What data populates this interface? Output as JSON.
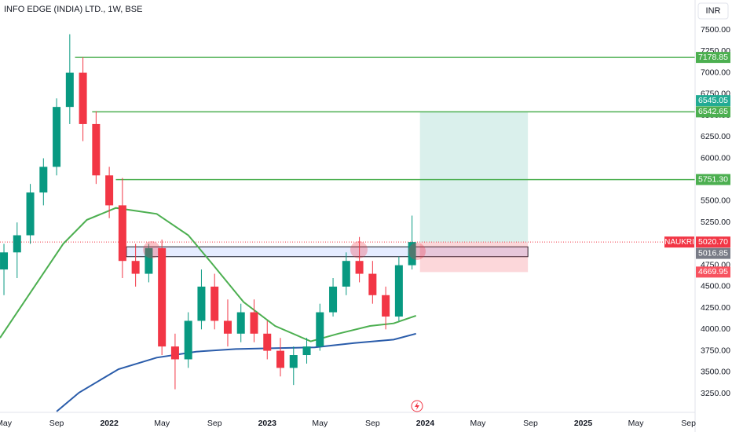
{
  "chart_data": {
    "type": "candlestick",
    "title": "INFO EDGE (INDIA) LTD., 1W, BSE",
    "currency": "INR",
    "grid": false,
    "xlim": [
      -0.3,
      52.5
    ],
    "xticks": [
      {
        "value": 0,
        "label": "May"
      },
      {
        "value": 4,
        "label": "Sep"
      },
      {
        "value": 8,
        "label": "2022"
      },
      {
        "value": 12,
        "label": "May"
      },
      {
        "value": 16,
        "label": "Sep"
      },
      {
        "value": 20,
        "label": "2023"
      },
      {
        "value": 24,
        "label": "May"
      },
      {
        "value": 28,
        "label": "Sep"
      },
      {
        "value": 32,
        "label": "2024"
      },
      {
        "value": 36,
        "label": "May"
      },
      {
        "value": 40,
        "label": "Sep"
      },
      {
        "value": 44,
        "label": "2025"
      },
      {
        "value": 48,
        "label": "May"
      },
      {
        "value": 52,
        "label": "Sep"
      }
    ],
    "ylim": [
      3030,
      7850
    ],
    "yticks": [
      {
        "value": 3250,
        "label": "3250.00"
      },
      {
        "value": 3500,
        "label": "3500.00"
      },
      {
        "value": 3750,
        "label": "3750.00"
      },
      {
        "value": 4000,
        "label": "4000.00"
      },
      {
        "value": 4250,
        "label": "4250.00"
      },
      {
        "value": 4500,
        "label": "4500.00"
      },
      {
        "value": 4750,
        "label": "4750.00"
      },
      {
        "value": 5000,
        "label": "5000.00"
      },
      {
        "value": 5250,
        "label": "5250.00"
      },
      {
        "value": 5500,
        "label": "5500.00"
      },
      {
        "value": 5750,
        "label": "5750.00"
      },
      {
        "value": 6000,
        "label": "6000.00"
      },
      {
        "value": 6250,
        "label": "6250.00"
      },
      {
        "value": 6500,
        "label": "6500.00"
      },
      {
        "value": 6750,
        "label": "6750.00"
      },
      {
        "value": 7000,
        "label": "7000.00"
      },
      {
        "value": 7250,
        "label": "7250.00"
      },
      {
        "value": 7500,
        "label": "7500.00"
      }
    ],
    "up_color": "#089981",
    "down_color": "#f23645",
    "candles": {
      "x": [
        0,
        1,
        2,
        3,
        4,
        5,
        6,
        7,
        8,
        9,
        10,
        11,
        12,
        13,
        14,
        15,
        16,
        17,
        18,
        19,
        20,
        21,
        22,
        23,
        24,
        25,
        26,
        27,
        28,
        29,
        30,
        31
      ],
      "open": [
        4700,
        4900,
        5100,
        5600,
        5900,
        6600,
        7000,
        6400,
        5800,
        5450,
        4800,
        4650,
        4950,
        3800,
        3650,
        4100,
        4500,
        4100,
        3950,
        4200,
        3950,
        3750,
        3550,
        3700,
        3800,
        4200,
        4500,
        4800,
        4650,
        4400,
        4150,
        4750
      ],
      "high": [
        5000,
        5250,
        5700,
        6000,
        6700,
        7450,
        7180,
        6550,
        5900,
        5770,
        5000,
        5000,
        5050,
        3950,
        4200,
        4700,
        4650,
        4350,
        4300,
        4350,
        4100,
        3900,
        3800,
        3900,
        4300,
        4600,
        4900,
        5080,
        4800,
        4500,
        4850,
        5330
      ],
      "low": [
        4400,
        4600,
        5000,
        5450,
        5800,
        6400,
        6200,
        5700,
        5300,
        4600,
        4500,
        4550,
        3700,
        3300,
        3550,
        4000,
        4000,
        3800,
        3850,
        3850,
        3650,
        3450,
        3350,
        3600,
        3750,
        4150,
        4400,
        4550,
        4300,
        4000,
        4100,
        4700
      ],
      "close": [
        4900,
        5100,
        5600,
        5900,
        6600,
        7000,
        6400,
        5800,
        5450,
        4800,
        4650,
        4950,
        3800,
        3650,
        4100,
        4500,
        4100,
        3950,
        4200,
        3950,
        3750,
        3550,
        3700,
        3800,
        4200,
        4500,
        4800,
        4650,
        4400,
        4150,
        4750,
        5020.7
      ]
    },
    "lines": [
      {
        "color": "#4caf50",
        "x": [
          -0.3,
          2.1,
          4.5,
          6.3,
          8.5,
          11.6,
          14,
          15.8,
          18.2,
          20.6,
          23.3,
          25.4,
          27.8,
          29.6,
          31.3
        ],
        "values": [
          3900,
          4450,
          5000,
          5280,
          5420,
          5350,
          5100,
          4770,
          4320,
          4040,
          3860,
          3950,
          4040,
          4070,
          4160
        ]
      },
      {
        "color": "#2a5caa",
        "x": [
          4,
          5.7,
          8.7,
          11.6,
          14.6,
          17.6,
          20.6,
          23.6,
          26.6,
          29.6,
          31.3
        ],
        "values": [
          3040,
          3260,
          3535,
          3670,
          3740,
          3770,
          3780,
          3790,
          3840,
          3880,
          3950
        ]
      }
    ],
    "level_color": "#4caf50",
    "levels": [
      {
        "start": 5.4,
        "price": 7178.85
      },
      {
        "start": 6.7,
        "price": 6542.65
      },
      {
        "start": 8.5,
        "price": {
          "value": 5751.3,
          "label": "5751.30"
        }
      }
    ],
    "zone": {
      "start": 9.3,
      "end": 39.8,
      "low": 4850,
      "high": 4965
    },
    "position": {
      "start": 31.6,
      "end": 39.8,
      "entry": 5016.85,
      "target": 6545.05,
      "stop": 4669.95
    },
    "last": {
      "symbol": "NAUKRI",
      "price": {
        "value": 5020.7,
        "label": "5020.70"
      }
    }
  }
}
